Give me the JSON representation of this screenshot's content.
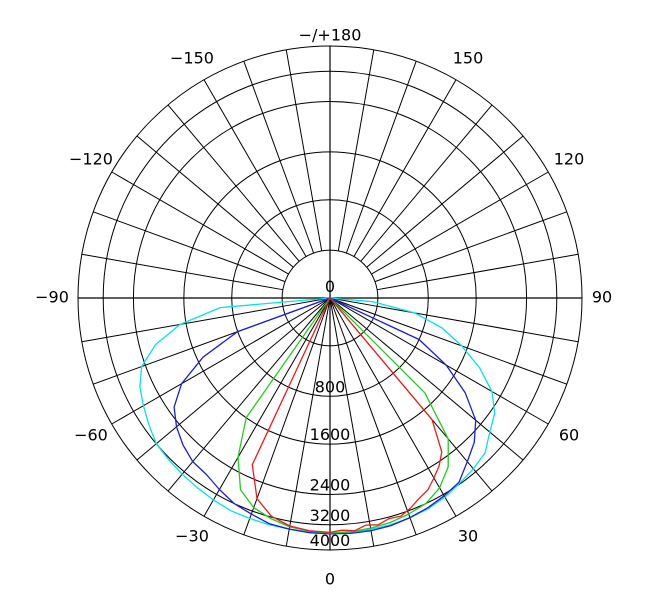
{
  "chart_data": {
    "type": "polar",
    "title": "",
    "angle_labels": [
      {
        "deg": 180,
        "text": "−/+180"
      },
      {
        "deg": 150,
        "text": "150"
      },
      {
        "deg": -150,
        "text": "−150"
      },
      {
        "deg": 120,
        "text": "120"
      },
      {
        "deg": -120,
        "text": "−120"
      },
      {
        "deg": 90,
        "text": "90"
      },
      {
        "deg": -90,
        "text": "−90"
      },
      {
        "deg": 60,
        "text": "60"
      },
      {
        "deg": -60,
        "text": "−60"
      },
      {
        "deg": 30,
        "text": "30"
      },
      {
        "deg": -30,
        "text": "−30"
      },
      {
        "deg": 0,
        "text": "0"
      }
    ],
    "radial_labels": [
      "0",
      "800",
      "1600",
      "2400",
      "3200",
      "4000"
    ],
    "radial_ticks": [
      0,
      800,
      1600,
      2400,
      3200,
      4000
    ],
    "rmax": 4000,
    "angle_spoke_step_deg": 10,
    "grid": true,
    "series": [
      {
        "color": "#00e5e5",
        "points": [
          [
            -90,
            0
          ],
          [
            -85,
            1000
          ],
          [
            -80,
            1700
          ],
          [
            -75,
            2150
          ],
          [
            -70,
            2500
          ],
          [
            -65,
            2750
          ],
          [
            -60,
            2900
          ],
          [
            -55,
            3050
          ],
          [
            -50,
            3200
          ],
          [
            -45,
            3250
          ],
          [
            -40,
            3300
          ],
          [
            -35,
            3350
          ],
          [
            -30,
            3400
          ],
          [
            -25,
            3450
          ],
          [
            -20,
            3450
          ],
          [
            -15,
            3450
          ],
          [
            -10,
            3450
          ],
          [
            -5,
            3460
          ],
          [
            0,
            3470
          ],
          [
            5,
            3470
          ],
          [
            10,
            3460
          ],
          [
            15,
            3450
          ],
          [
            20,
            3430
          ],
          [
            25,
            3380
          ],
          [
            30,
            3300
          ],
          [
            35,
            3180
          ],
          [
            40,
            3100
          ],
          [
            45,
            3000
          ],
          [
            50,
            2720
          ],
          [
            55,
            2520
          ],
          [
            60,
            2250
          ],
          [
            65,
            1900
          ],
          [
            70,
            1500
          ],
          [
            75,
            1100
          ],
          [
            80,
            700
          ],
          [
            85,
            350
          ],
          [
            90,
            0
          ]
        ]
      },
      {
        "color": "#1c1cdc",
        "points": [
          [
            -75,
            0
          ],
          [
            -70,
            800
          ],
          [
            -65,
            1500
          ],
          [
            -60,
            2000
          ],
          [
            -55,
            2300
          ],
          [
            -50,
            2500
          ],
          [
            -45,
            2700
          ],
          [
            -40,
            2850
          ],
          [
            -35,
            2900
          ],
          [
            -30,
            3050
          ],
          [
            -25,
            3200
          ],
          [
            -20,
            3300
          ],
          [
            -15,
            3420
          ],
          [
            -10,
            3450
          ],
          [
            -5,
            3480
          ],
          [
            0,
            3490
          ],
          [
            5,
            3500
          ],
          [
            10,
            3500
          ],
          [
            15,
            3480
          ],
          [
            20,
            3420
          ],
          [
            25,
            3350
          ],
          [
            30,
            3250
          ],
          [
            35,
            3150
          ],
          [
            40,
            2850
          ],
          [
            45,
            2600
          ],
          [
            50,
            2300
          ],
          [
            55,
            1900
          ],
          [
            60,
            1400
          ],
          [
            65,
            800
          ],
          [
            70,
            0
          ]
        ]
      },
      {
        "color": "#22cc22",
        "points": [
          [
            -40,
            0
          ],
          [
            -35,
            1600
          ],
          [
            -30,
            2200
          ],
          [
            -25,
            2800
          ],
          [
            -20,
            3100
          ],
          [
            -15,
            3250
          ],
          [
            -10,
            3380
          ],
          [
            -5,
            3430
          ],
          [
            0,
            3460
          ],
          [
            5,
            3450
          ],
          [
            10,
            3420
          ],
          [
            15,
            3380
          ],
          [
            20,
            3300
          ],
          [
            25,
            3200
          ],
          [
            30,
            3000
          ],
          [
            35,
            2650
          ],
          [
            40,
            2200
          ],
          [
            45,
            1400
          ],
          [
            50,
            0
          ]
        ]
      },
      {
        "color": "#ee1c1c",
        "points": [
          [
            -30,
            0
          ],
          [
            -25,
            2200
          ],
          [
            -20,
            2850
          ],
          [
            -15,
            3180
          ],
          [
            -10,
            3350
          ],
          [
            -5,
            3420
          ],
          [
            0,
            3440
          ],
          [
            3,
            3380
          ],
          [
            6,
            3430
          ],
          [
            9,
            3300
          ],
          [
            12,
            3360
          ],
          [
            15,
            3250
          ],
          [
            18,
            3280
          ],
          [
            21,
            3150
          ],
          [
            24,
            3000
          ],
          [
            27,
            2900
          ],
          [
            30,
            2700
          ],
          [
            33,
            2500
          ],
          [
            36,
            2300
          ],
          [
            40,
            1800
          ],
          [
            45,
            0
          ]
        ]
      }
    ]
  }
}
